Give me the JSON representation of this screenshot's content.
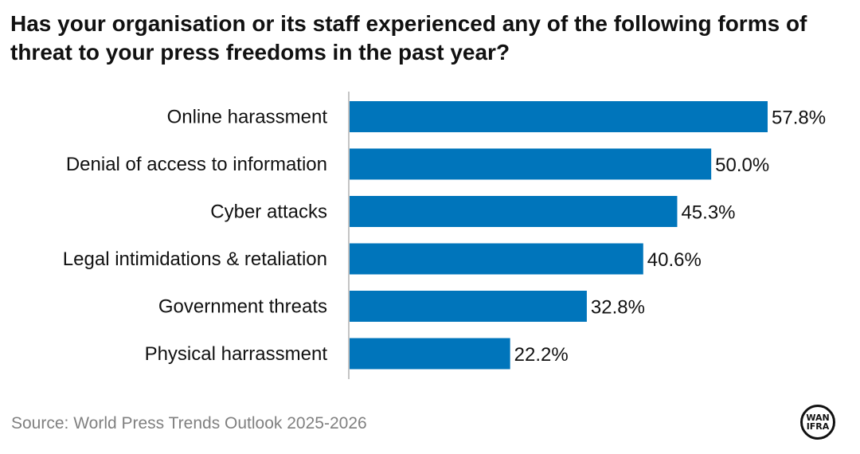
{
  "header": {
    "title": "Has your organisation or its staff experienced any of the following forms of threat to your press freedoms in the past year?"
  },
  "footer": {
    "source": "Source: World Press Trends Outlook 2025-2026",
    "logo_line1": "WAN",
    "logo_line2": "IFRA"
  },
  "colors": {
    "bar": "#0075BB",
    "axis": "#888888",
    "text": "#111111",
    "source": "#808080"
  },
  "chart_data": {
    "type": "bar",
    "orientation": "horizontal",
    "title": "Has your organisation or its staff experienced any of the following forms of threat to your press freedoms in the past year?",
    "xlabel": "",
    "ylabel": "",
    "categories": [
      "Online harassment",
      "Denial of access to information",
      "Cyber attacks",
      "Legal intimidations & retaliation",
      "Government threats",
      "Physical harrassment"
    ],
    "values": [
      57.8,
      50.0,
      45.3,
      40.6,
      32.8,
      22.2
    ],
    "value_labels": [
      "57.8%",
      "50.0%",
      "45.3%",
      "40.6%",
      "32.8%",
      "22.2%"
    ],
    "unit": "%",
    "xlim": [
      0,
      57.8
    ],
    "grid": false,
    "legend": "none",
    "source": "World Press Trends Outlook 2025-2026"
  }
}
